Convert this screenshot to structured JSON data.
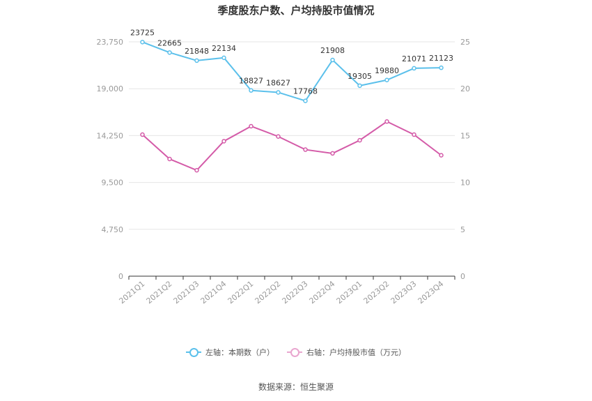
{
  "chart_data": {
    "type": "line",
    "title": "季度股东户数、户均持股市值情况",
    "categories": [
      "2021Q1",
      "2021Q2",
      "2021Q3",
      "2021Q4",
      "2022Q1",
      "2022Q2",
      "2022Q3",
      "2022Q4",
      "2023Q1",
      "2023Q2",
      "2023Q3",
      "2023Q4"
    ],
    "y_left": {
      "ticks": [
        "0",
        "4,750",
        "9,500",
        "14,250",
        "19,000",
        "23,750"
      ],
      "range": [
        0,
        23750
      ]
    },
    "y_right": {
      "ticks": [
        "0",
        "5",
        "10",
        "15",
        "20",
        "25"
      ],
      "range": [
        0,
        25
      ]
    },
    "series": [
      {
        "name": "左轴：本期数（户）",
        "axis": "left",
        "color": "#5bc0eb",
        "values": [
          23725,
          22665,
          21848,
          22134,
          18827,
          18627,
          17768,
          21908,
          19305,
          19880,
          21071,
          21123
        ],
        "labels": [
          "23725",
          "22665",
          "21848",
          "22134",
          "18827",
          "18627",
          "17768",
          "21908",
          "19305",
          "19880",
          "21071",
          "21123"
        ]
      },
      {
        "name": "右轴：户均持股市值（万元）",
        "axis": "right",
        "color": "#d45ba8",
        "values": [
          15.1,
          12.5,
          11.3,
          14.4,
          16.0,
          14.9,
          13.5,
          13.1,
          14.5,
          16.5,
          15.1,
          12.9
        ]
      }
    ],
    "grid": true,
    "legend": "bottom-center"
  },
  "source": "数据来源：恒生聚源"
}
